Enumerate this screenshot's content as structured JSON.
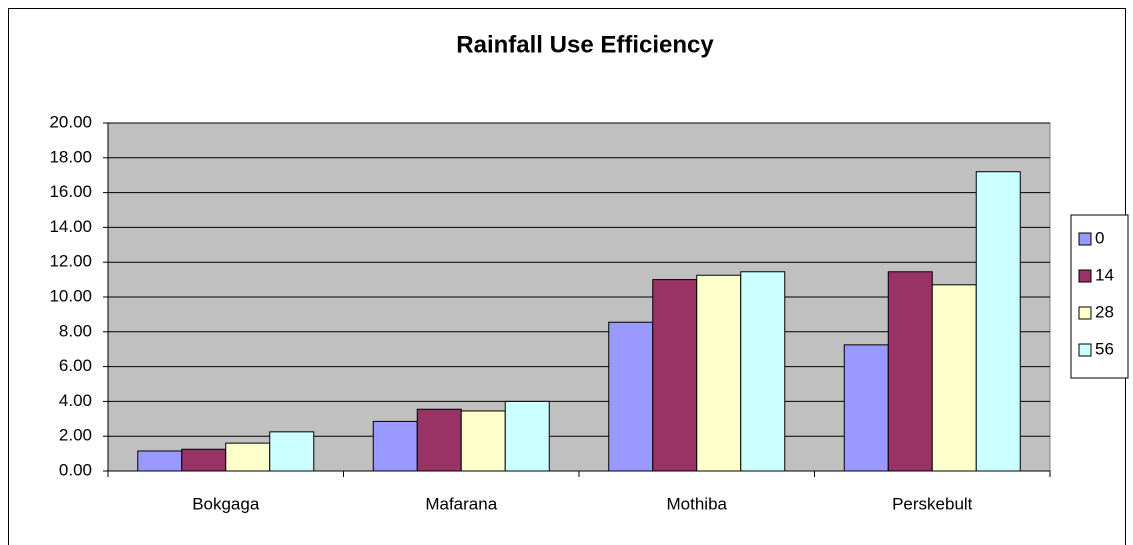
{
  "chart_data": {
    "type": "bar",
    "title": "Rainfall Use Efficiency",
    "categories": [
      "Bokgaga",
      "Mafarana",
      "Mothiba",
      "Perskebult"
    ],
    "series": [
      {
        "name": "0",
        "color": "#9999ff",
        "values": [
          1.15,
          2.85,
          8.55,
          7.25
        ]
      },
      {
        "name": "14",
        "color": "#993366",
        "values": [
          1.25,
          3.55,
          11.0,
          11.45
        ]
      },
      {
        "name": "28",
        "color": "#ffffcc",
        "values": [
          1.6,
          3.45,
          11.25,
          10.7
        ]
      },
      {
        "name": "56",
        "color": "#ccffff",
        "values": [
          2.25,
          4.0,
          11.45,
          17.2
        ]
      }
    ],
    "ylim": [
      0,
      20
    ],
    "yticks": [
      {
        "value": 0,
        "label": "0.00"
      },
      {
        "value": 2,
        "label": "2.00"
      },
      {
        "value": 4,
        "label": "4.00"
      },
      {
        "value": 6,
        "label": "6.00"
      },
      {
        "value": 8,
        "label": "8.00"
      },
      {
        "value": 10,
        "label": "10.00"
      },
      {
        "value": 12,
        "label": "12.00"
      },
      {
        "value": 14,
        "label": "14.00"
      },
      {
        "value": 16,
        "label": "16.00"
      },
      {
        "value": 18,
        "label": "18.00"
      },
      {
        "value": 20,
        "label": "20.00"
      }
    ],
    "grid": true,
    "legend": "right"
  }
}
